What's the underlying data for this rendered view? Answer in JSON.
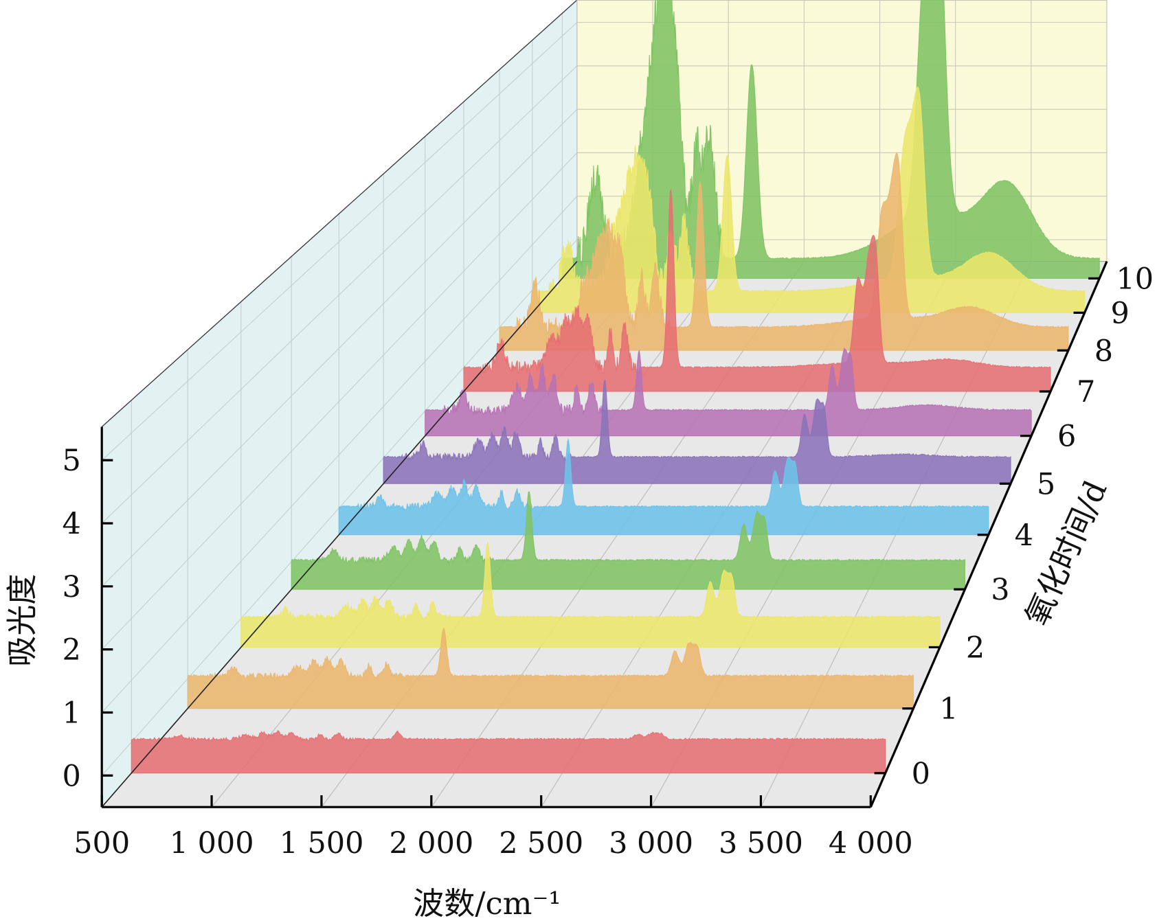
{
  "chart_data": {
    "type": "area",
    "subtype": "3d-waterfall",
    "title": "",
    "xlabel": "波数/cm⁻¹",
    "ylabel": "吸光度",
    "zlabel": "氧化时间/d",
    "xlim": [
      500,
      4000
    ],
    "ylim": [
      -0.5,
      5.5
    ],
    "zlim": [
      0,
      10
    ],
    "x_ticks": [
      500,
      1000,
      1500,
      2000,
      2500,
      3000,
      3500,
      4000
    ],
    "x_tick_labels": [
      "500",
      "1 000",
      "1 500",
      "2 000",
      "2 500",
      "3 000",
      "3 500",
      "4 000"
    ],
    "y_ticks": [
      0,
      1,
      2,
      3,
      4,
      5
    ],
    "y_tick_labels": [
      "0",
      "1",
      "2",
      "3",
      "4",
      "5"
    ],
    "z_ticks": [
      0,
      1,
      2,
      3,
      4,
      5,
      6,
      7,
      8,
      9,
      10
    ],
    "z_tick_labels": [
      "0",
      "1",
      "2",
      "3",
      "4",
      "5",
      "6",
      "7",
      "8",
      "9",
      "10"
    ],
    "grid": true,
    "panel_colors": {
      "floor": "#e8e8e8",
      "left_wall": "#e2f2f2",
      "back_wall": "#fafad9"
    },
    "bands": [
      {
        "wn": 720,
        "sigma": 18,
        "group": "fp",
        "rel": 0.45
      },
      {
        "wn": 1030,
        "sigma": 25,
        "group": "fp",
        "rel": 0.55
      },
      {
        "wn": 1110,
        "sigma": 20,
        "group": "fp",
        "rel": 0.8
      },
      {
        "wn": 1175,
        "sigma": 18,
        "group": "fp",
        "rel": 1.0
      },
      {
        "wn": 1240,
        "sigma": 18,
        "group": "fp",
        "rel": 0.85
      },
      {
        "wn": 1375,
        "sigma": 12,
        "group": "fp",
        "rel": 0.6
      },
      {
        "wn": 1460,
        "sigma": 14,
        "group": "fp",
        "rel": 0.7
      },
      {
        "wn": 1735,
        "sigma": 14,
        "group": "co",
        "rel": 1.0
      },
      {
        "wn": 2850,
        "sigma": 18,
        "group": "ch",
        "rel": 0.75
      },
      {
        "wn": 2920,
        "sigma": 22,
        "group": "ch",
        "rel": 1.0
      },
      {
        "wn": 2960,
        "sigma": 15,
        "group": "ch",
        "rel": 0.7
      },
      {
        "wn": 2900,
        "sigma": 260,
        "group": "chb",
        "rel": 1.0
      },
      {
        "wn": 3400,
        "sigma": 160,
        "group": "oh",
        "rel": 1.0
      }
    ],
    "series": [
      {
        "name": "0",
        "day": 0,
        "color": "#e56f72",
        "baseline": 0.55,
        "broadening": 1.0,
        "fp": 0.12,
        "co": 0.12,
        "ch": 0.1,
        "chb": 0,
        "oh": 0
      },
      {
        "name": "1",
        "day": 1,
        "color": "#ebb66d",
        "baseline": 0.55,
        "broadening": 1.0,
        "fp": 0.3,
        "co": 0.8,
        "ch": 0.55,
        "chb": 0,
        "oh": 0
      },
      {
        "name": "2",
        "day": 2,
        "color": "#ebe66a",
        "baseline": 0.53,
        "broadening": 1.0,
        "fp": 0.35,
        "co": 1.3,
        "ch": 0.8,
        "chb": 0,
        "oh": 0
      },
      {
        "name": "3",
        "day": 3,
        "color": "#7fc364",
        "baseline": 0.53,
        "broadening": 1.0,
        "fp": 0.4,
        "co": 1.25,
        "ch": 0.85,
        "chb": 0,
        "oh": 0
      },
      {
        "name": "4",
        "day": 4,
        "color": "#6cc2e8",
        "baseline": 0.53,
        "broadening": 1.0,
        "fp": 0.45,
        "co": 1.25,
        "ch": 0.9,
        "chb": 0,
        "oh": 0
      },
      {
        "name": "5",
        "day": 5,
        "color": "#8b73b8",
        "baseline": 0.52,
        "broadening": 1.0,
        "fp": 0.55,
        "co": 1.5,
        "ch": 1.1,
        "chb": 0,
        "oh": 0.05
      },
      {
        "name": "6",
        "day": 6,
        "color": "#b673b4",
        "baseline": 0.52,
        "broadening": 1.0,
        "fp": 0.87,
        "co": 1.2,
        "ch": 1.2,
        "chb": 0,
        "oh": 0.1
      },
      {
        "name": "7",
        "day": 7,
        "color": "#e56f72",
        "baseline": 0.5,
        "broadening": 1.3,
        "fp": 1.2,
        "co": 3.7,
        "ch": 2.2,
        "chb": 0.1,
        "oh": 0.15
      },
      {
        "name": "8",
        "day": 8,
        "color": "#ebb66d",
        "baseline": 0.5,
        "broadening": 1.6,
        "fp": 1.9,
        "co": 3.1,
        "ch": 2.6,
        "chb": 0.2,
        "oh": 0.4
      },
      {
        "name": "9",
        "day": 9,
        "color": "#ebe66a",
        "baseline": 0.48,
        "broadening": 2.0,
        "fp": 2.2,
        "co": 3.0,
        "ch": 2.8,
        "chb": 0.3,
        "oh": 0.8
      },
      {
        "name": "10",
        "day": 10,
        "color": "#7fc364",
        "baseline": 0.45,
        "broadening": 2.5,
        "fp": 4.0,
        "co": 4.4,
        "ch": 4.7,
        "chb": 1.0,
        "oh": 1.6
      }
    ]
  }
}
